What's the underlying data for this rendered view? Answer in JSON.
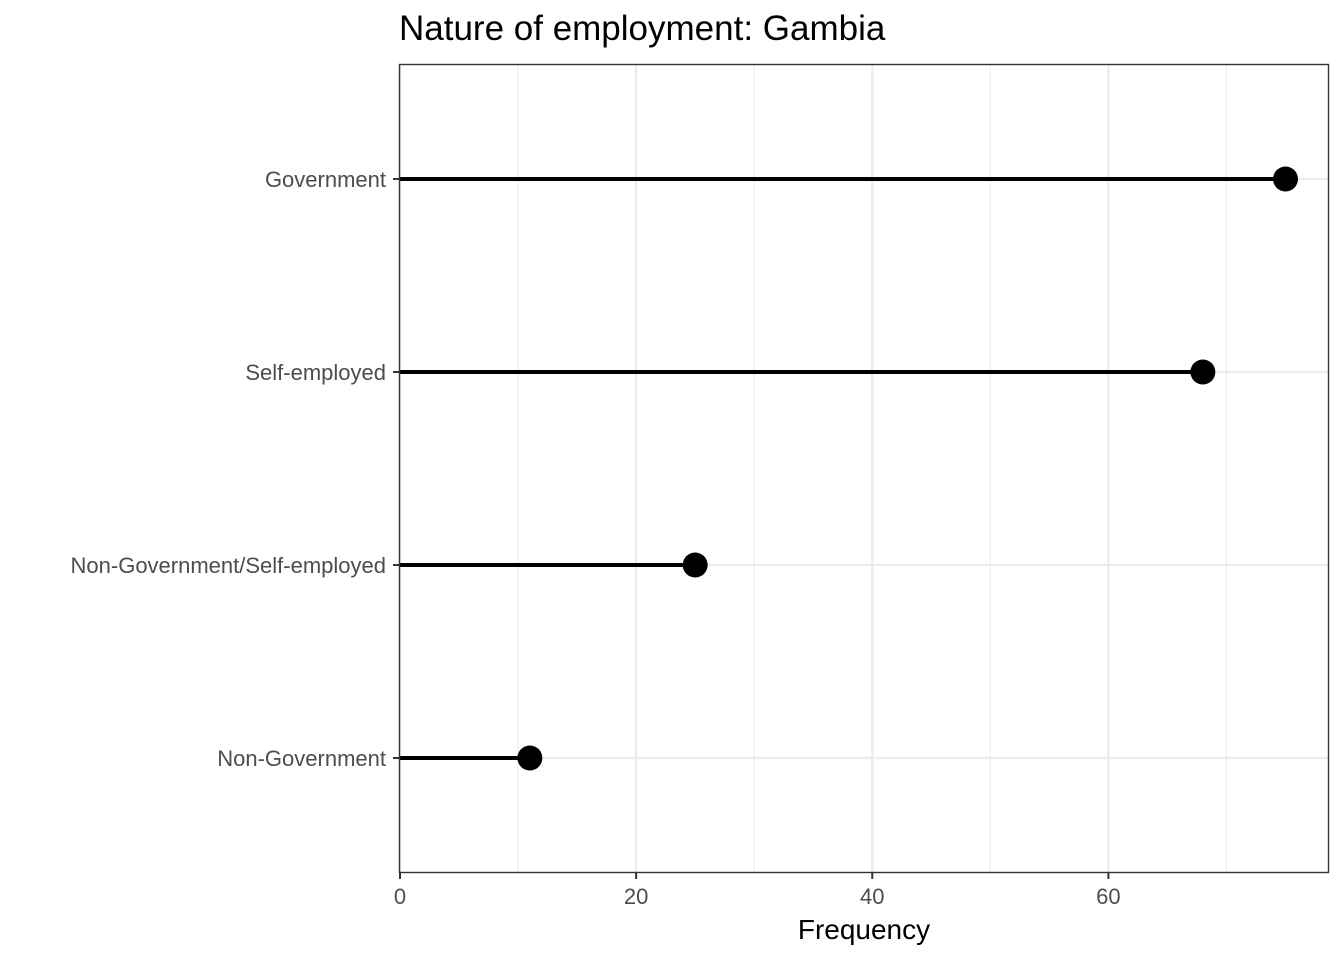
{
  "chart_data": {
    "type": "lollipop",
    "title": "Nature of employment: Gambia",
    "xlabel": "Frequency",
    "ylabel": "",
    "xlim": [
      0,
      78.6
    ],
    "x_ticks": [
      0,
      20,
      40,
      60
    ],
    "x_tick_labels": [
      "0",
      "20",
      "40",
      "60"
    ],
    "minor_gridlines": [
      10,
      30,
      50,
      70
    ],
    "categories": [
      "Government",
      "Self-employed",
      "Non-Government/Self-employed",
      "Non-Government"
    ],
    "values": [
      75,
      68,
      25,
      11
    ],
    "grid": true,
    "legend": "none",
    "colors": {
      "point": "#000000",
      "stem": "#000000",
      "grid": "#ebebeb",
      "panel_border": "#333333",
      "tick_text": "#4d4d4d"
    }
  }
}
